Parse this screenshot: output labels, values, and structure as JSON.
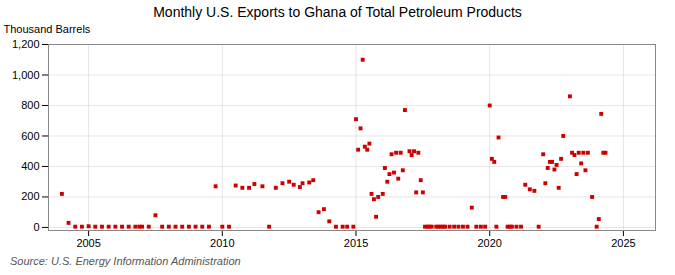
{
  "chart_data": {
    "type": "scatter",
    "title": "Monthly U.S. Exports to Ghana of Total Petroleum Products",
    "ylabel": "Thousand Barrels",
    "source": "Source: U.S. Energy Information Administration",
    "color": "#cc0000",
    "marker": "square",
    "grid": true,
    "xlim": [
      2003.5,
      2026.2
    ],
    "ylim": [
      -20,
      1200
    ],
    "xticks": [
      2005,
      2010,
      2015,
      2020,
      2025
    ],
    "yticks": [
      0,
      200,
      400,
      600,
      800,
      {
        "value": 1000,
        "label": "1,000"
      },
      {
        "value": 1200,
        "label": "1,200"
      }
    ],
    "x": [
      2004.0,
      2004.25,
      2004.5,
      2004.75,
      2005.0,
      2005.25,
      2005.5,
      2005.75,
      2006.0,
      2006.25,
      2006.5,
      2006.75,
      2006.9,
      2007.0,
      2007.25,
      2007.5,
      2007.75,
      2008.0,
      2008.25,
      2008.5,
      2008.75,
      2009.0,
      2009.25,
      2009.5,
      2009.75,
      2010.0,
      2010.25,
      2010.5,
      2010.75,
      2011.0,
      2011.2,
      2011.5,
      2011.75,
      2012.0,
      2012.25,
      2012.5,
      2012.67,
      2012.9,
      2013.0,
      2013.25,
      2013.4,
      2013.6,
      2013.8,
      2014.0,
      2014.25,
      2014.5,
      2014.67,
      2014.9,
      2015.0,
      2015.08,
      2015.17,
      2015.25,
      2015.33,
      2015.42,
      2015.5,
      2015.58,
      2015.67,
      2015.75,
      2015.83,
      2016.0,
      2016.08,
      2016.17,
      2016.25,
      2016.33,
      2016.42,
      2016.5,
      2016.58,
      2016.67,
      2016.75,
      2016.83,
      2017.0,
      2017.08,
      2017.17,
      2017.25,
      2017.33,
      2017.42,
      2017.5,
      2017.58,
      2017.67,
      2017.75,
      2017.83,
      2018.0,
      2018.08,
      2018.17,
      2018.25,
      2018.33,
      2018.5,
      2018.67,
      2018.83,
      2019.0,
      2019.17,
      2019.33,
      2019.5,
      2019.67,
      2019.83,
      2020.0,
      2020.08,
      2020.17,
      2020.25,
      2020.33,
      2020.5,
      2020.58,
      2020.67,
      2020.75,
      2020.83,
      2021.0,
      2021.17,
      2021.33,
      2021.5,
      2021.67,
      2021.83,
      2022.0,
      2022.08,
      2022.17,
      2022.25,
      2022.33,
      2022.42,
      2022.5,
      2022.58,
      2022.67,
      2022.75,
      2023.0,
      2023.08,
      2023.17,
      2023.25,
      2023.33,
      2023.42,
      2023.5,
      2023.58,
      2023.67,
      2023.83,
      2024.0,
      2024.08,
      2024.17,
      2024.25,
      2024.33
    ],
    "values": [
      220,
      30,
      5,
      5,
      8,
      5,
      5,
      5,
      5,
      5,
      5,
      5,
      5,
      5,
      5,
      80,
      5,
      5,
      5,
      5,
      5,
      5,
      5,
      5,
      270,
      5,
      5,
      275,
      260,
      260,
      285,
      270,
      5,
      260,
      290,
      300,
      280,
      265,
      290,
      295,
      310,
      100,
      120,
      40,
      5,
      5,
      5,
      5,
      710,
      510,
      650,
      1100,
      530,
      510,
      550,
      220,
      185,
      70,
      200,
      220,
      390,
      300,
      350,
      480,
      360,
      490,
      320,
      490,
      375,
      770,
      500,
      475,
      500,
      230,
      490,
      310,
      230,
      5,
      5,
      5,
      5,
      5,
      5,
      5,
      5,
      5,
      5,
      5,
      5,
      5,
      5,
      130,
      5,
      5,
      5,
      800,
      450,
      430,
      5,
      590,
      200,
      200,
      5,
      5,
      5,
      5,
      5,
      280,
      250,
      240,
      5,
      480,
      290,
      390,
      430,
      430,
      380,
      410,
      260,
      450,
      600,
      860,
      490,
      475,
      350,
      490,
      420,
      490,
      375,
      490,
      200,
      5,
      55,
      745,
      490,
      490
    ]
  }
}
